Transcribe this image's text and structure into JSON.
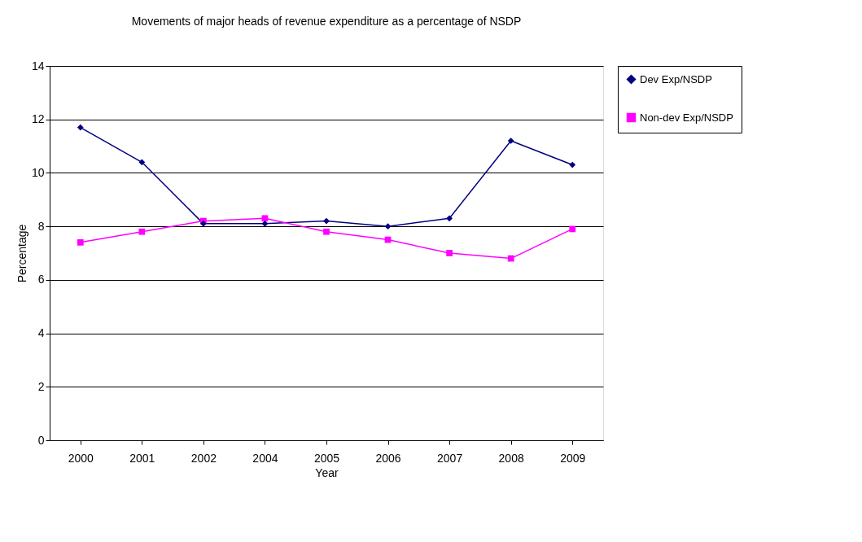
{
  "chart_data": {
    "type": "line",
    "title": "Movements of major heads of revenue expenditure as a percentage of NSDP",
    "xlabel": "Year",
    "ylabel": "Percentage",
    "categories": [
      "2000",
      "2001",
      "2002",
      "2004",
      "2005",
      "2006",
      "2007",
      "2008",
      "2009"
    ],
    "series": [
      {
        "name": "Dev Exp/NSDP",
        "color": "#000080",
        "marker": "diamond",
        "values": [
          11.7,
          10.4,
          8.1,
          8.1,
          8.2,
          8.0,
          8.3,
          11.2,
          10.3
        ]
      },
      {
        "name": "Non-dev Exp/NSDP",
        "color": "#ff00ff",
        "marker": "square",
        "values": [
          7.4,
          7.8,
          8.2,
          8.3,
          7.8,
          7.5,
          7.0,
          6.8,
          7.9
        ]
      }
    ],
    "ylim": [
      0,
      14
    ],
    "yticks": [
      0,
      2,
      4,
      6,
      8,
      10,
      12,
      14
    ],
    "grid": "y",
    "legend": "right",
    "line_style": "solid"
  }
}
